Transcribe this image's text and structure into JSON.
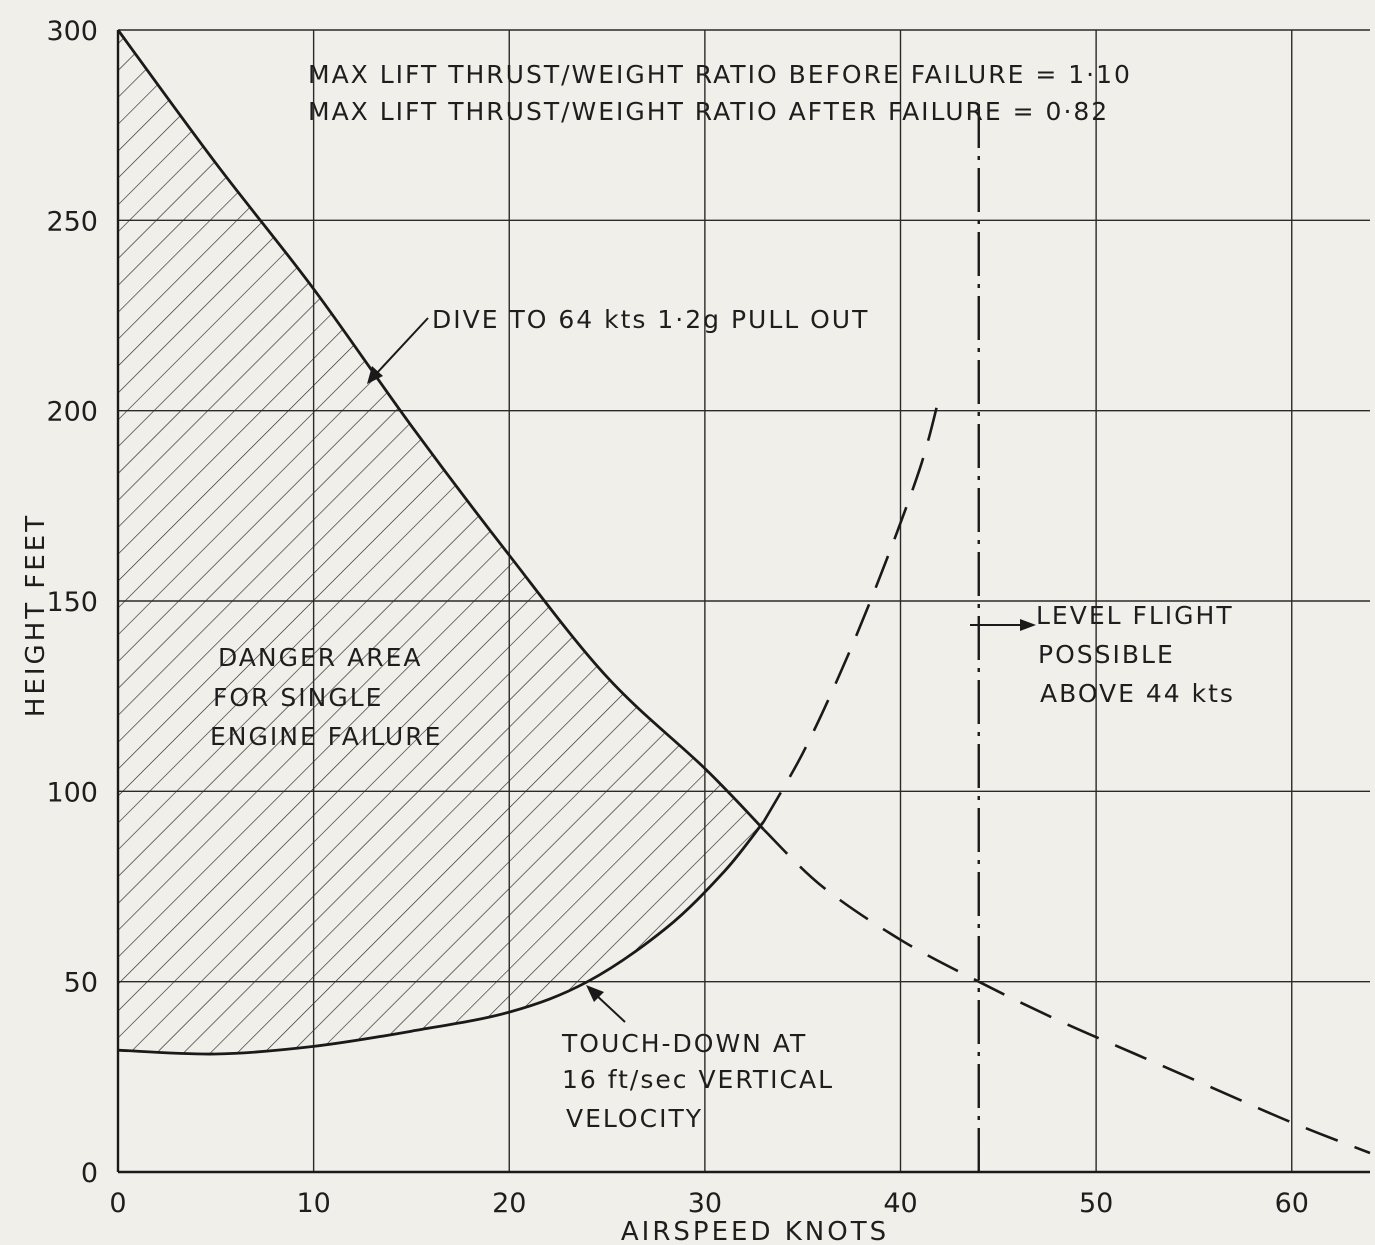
{
  "chart_data": {
    "type": "line",
    "xlabel": "AIRSPEED KNOTS",
    "ylabel": "HEIGHT FEET",
    "xlim": [
      0,
      64
    ],
    "ylim": [
      0,
      300
    ],
    "grid": true,
    "x_ticks": [
      "0",
      "10",
      "20",
      "30",
      "40",
      "50",
      "60"
    ],
    "y_ticks": [
      "0",
      "50",
      "100",
      "150",
      "200",
      "250",
      "300"
    ],
    "series": [
      {
        "role": "upper_boundary",
        "style": "solid",
        "x": [
          0,
          5,
          10,
          15,
          20,
          25,
          30,
          33
        ],
        "y": [
          300,
          265,
          232,
          196,
          162,
          130,
          106,
          90
        ]
      },
      {
        "role": "upper_boundary_extension",
        "style": "dashed",
        "x": [
          33,
          36,
          40,
          44,
          48,
          52,
          56,
          60,
          64
        ],
        "y": [
          90,
          75,
          61,
          50,
          40,
          31,
          22,
          13,
          5
        ]
      },
      {
        "role": "lower_boundary",
        "style": "solid",
        "x": [
          0,
          5,
          10,
          15,
          20,
          24,
          28,
          31,
          33
        ],
        "y": [
          32,
          31,
          33,
          37,
          42,
          50,
          64,
          79,
          92
        ]
      },
      {
        "role": "lower_boundary_extension",
        "style": "dashed",
        "x": [
          33,
          35,
          37,
          39,
          41,
          42
        ],
        "y": [
          92,
          110,
          132,
          157,
          185,
          204
        ]
      },
      {
        "role": "level_flight_limit",
        "style": "dash-dot",
        "x": [
          44,
          44
        ],
        "y": [
          0,
          282
        ]
      }
    ],
    "shaded_region": "danger_area",
    "annotations": {
      "ratio_before": "MAX LIFT THRUST/WEIGHT RATIO BEFORE FAILURE = 1·10",
      "ratio_after": "MAX LIFT THRUST/WEIGHT RATIO AFTER FAILURE = 0·82",
      "dive": "DIVE TO 64 kts 1·2g PULL OUT",
      "danger_line1": "DANGER AREA",
      "danger_line2": "FOR SINGLE",
      "danger_line3": "ENGINE FAILURE",
      "level_line1": "LEVEL FLIGHT",
      "level_line2": "POSSIBLE",
      "level_line3": "ABOVE 44 kts",
      "touch_line1": "TOUCH-DOWN AT",
      "touch_line2": "16 ft/sec VERTICAL",
      "touch_line3": "VELOCITY"
    }
  }
}
